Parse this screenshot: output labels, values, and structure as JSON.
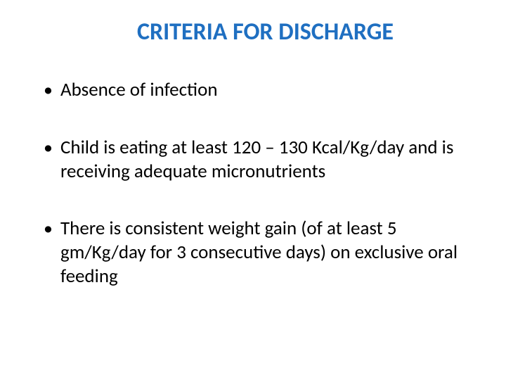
{
  "slide": {
    "title": "CRITERIA FOR DISCHARGE",
    "title_color": "#1f6fc1",
    "title_fontsize": 34,
    "body_color": "#000000",
    "body_fontsize": 27,
    "background_color": "#ffffff",
    "bullets": [
      "Absence of infection",
      "Child is eating at least 120 – 130 Kcal/Kg/day and is receiving adequate micronutrients",
      "There is consistent weight gain (of at least 5 gm/Kg/day for 3 consecutive days) on exclusive oral feeding"
    ]
  }
}
